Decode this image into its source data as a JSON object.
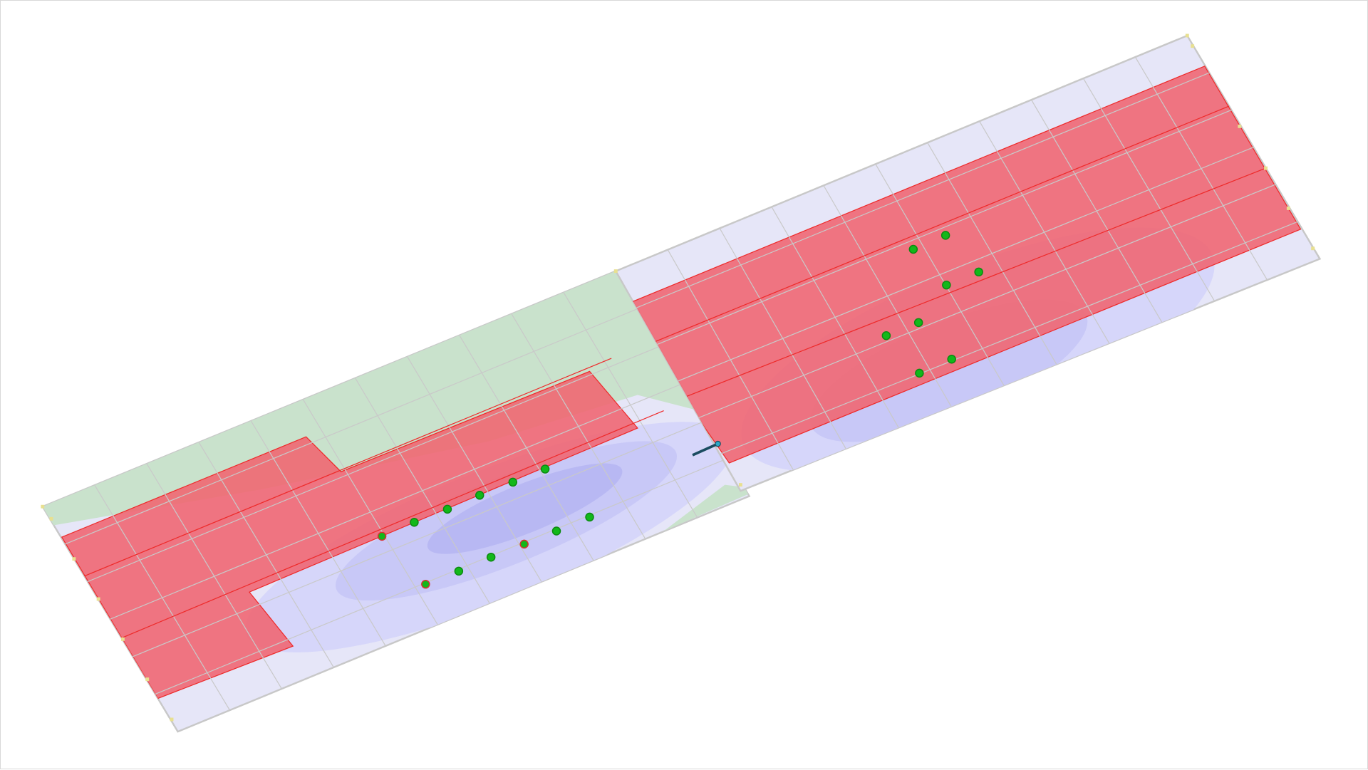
{
  "colors": {
    "background": "#ffffff",
    "slab": "#e6e6f8",
    "slab_edge": "#c8c8c8",
    "green_zone": "#c9e2cc",
    "red_zone": "#f06470",
    "red_line": "#ee2a2a",
    "blue_outer": "#d6d6fa",
    "blue_mid": "#c4c4f6",
    "blue_inner": "#b4b4f2",
    "point_fill": "#12b81a",
    "point_outline_alt": "#d83030",
    "connector": "#2aa8c8"
  },
  "view": {
    "type": "3d-structural-model",
    "panels": 2
  }
}
